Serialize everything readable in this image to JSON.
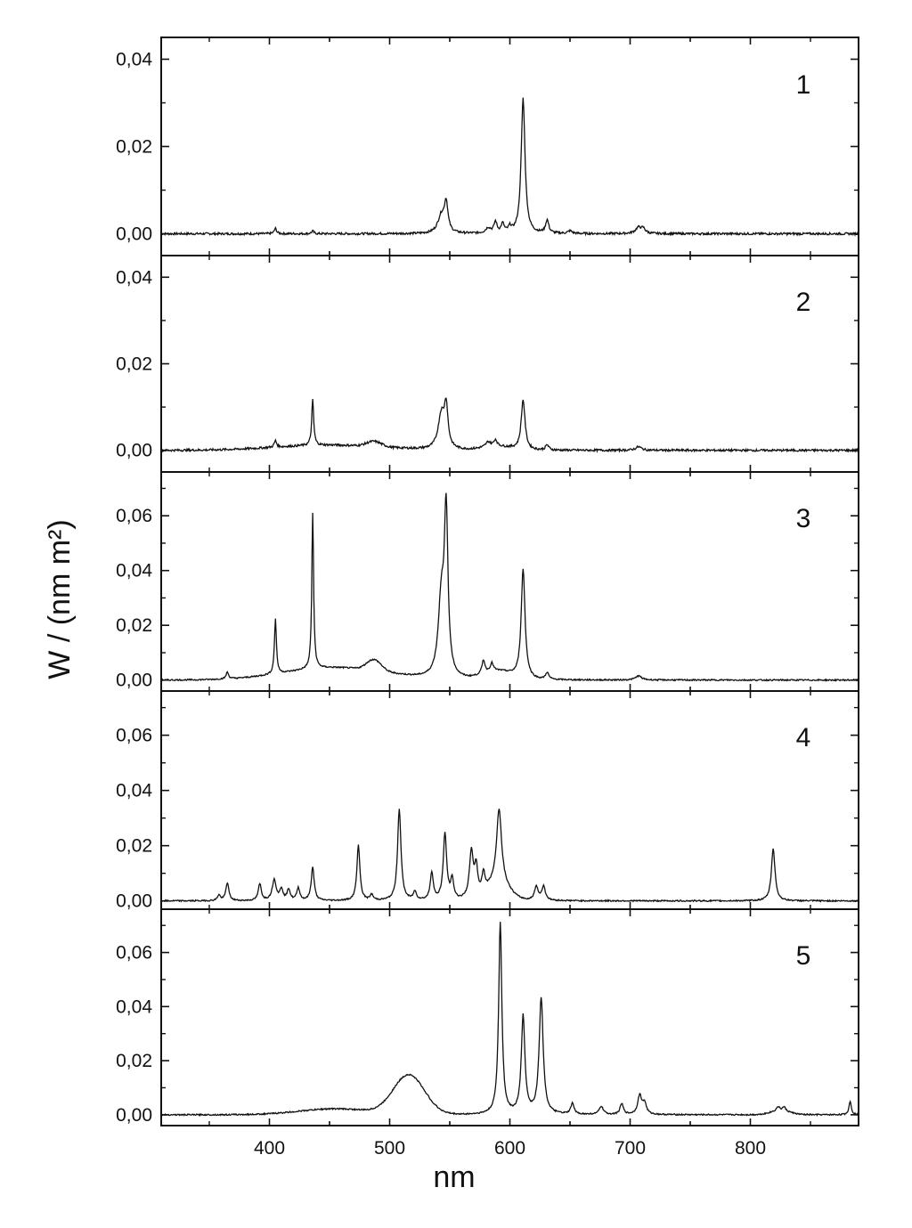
{
  "chart_data": {
    "type": "line",
    "xlabel": "nm",
    "ylabel": "W / (nm m²)",
    "xlim": [
      310,
      890
    ],
    "x_ticks": [
      "400",
      "500",
      "600",
      "700",
      "800"
    ],
    "grid": false,
    "panels": [
      {
        "label": "1",
        "ylim": [
          -0.005,
          0.045
        ],
        "y_ticks": [
          "0,00",
          "0,02",
          "0,04"
        ],
        "baseline": 0.0,
        "peaks": [
          {
            "x": 405,
            "h": 0.0012,
            "w": 1.2
          },
          {
            "x": 436,
            "h": 0.0006,
            "w": 1.2
          },
          {
            "x": 543,
            "h": 0.004,
            "w": 3.5
          },
          {
            "x": 547,
            "h": 0.0065,
            "w": 1.8
          },
          {
            "x": 582,
            "h": 0.0012,
            "w": 2.5
          },
          {
            "x": 588,
            "h": 0.0025,
            "w": 1.5
          },
          {
            "x": 594,
            "h": 0.002,
            "w": 1.5
          },
          {
            "x": 600,
            "h": 0.0012,
            "w": 1.5
          },
          {
            "x": 611,
            "h": 0.031,
            "w": 1.9
          },
          {
            "x": 631,
            "h": 0.003,
            "w": 1.6
          },
          {
            "x": 650,
            "h": 0.0006,
            "w": 2.0
          },
          {
            "x": 707,
            "h": 0.0014,
            "w": 3.0
          },
          {
            "x": 711,
            "h": 0.001,
            "w": 2.0
          }
        ]
      },
      {
        "label": "2",
        "ylim": [
          -0.005,
          0.045
        ],
        "y_ticks": [
          "0,00",
          "0,02",
          "0,04"
        ],
        "baseline": 0.0,
        "broad": [
          {
            "x": 450,
            "h": 0.0012,
            "w": 45
          },
          {
            "x": 487,
            "h": 0.0012,
            "w": 6
          },
          {
            "x": 590,
            "h": 0.0008,
            "w": 12
          }
        ],
        "peaks": [
          {
            "x": 405,
            "h": 0.0015,
            "w": 1.2
          },
          {
            "x": 436,
            "h": 0.0105,
            "w": 1.0
          },
          {
            "x": 543,
            "h": 0.008,
            "w": 3.2
          },
          {
            "x": 547,
            "h": 0.009,
            "w": 1.8
          },
          {
            "x": 582,
            "h": 0.0012,
            "w": 2.5
          },
          {
            "x": 588,
            "h": 0.0015,
            "w": 1.6
          },
          {
            "x": 611,
            "h": 0.0115,
            "w": 1.9
          },
          {
            "x": 631,
            "h": 0.0012,
            "w": 1.6
          },
          {
            "x": 707,
            "h": 0.0008,
            "w": 3.0
          }
        ]
      },
      {
        "label": "3",
        "ylim": [
          -0.004,
          0.076
        ],
        "y_ticks": [
          "0,00",
          "0,02",
          "0,04",
          "0,06"
        ],
        "baseline": 0.0,
        "broad": [
          {
            "x": 455,
            "h": 0.0045,
            "w": 42
          },
          {
            "x": 487,
            "h": 0.004,
            "w": 6
          },
          {
            "x": 590,
            "h": 0.003,
            "w": 12
          }
        ],
        "peaks": [
          {
            "x": 365,
            "h": 0.0025,
            "w": 1.2
          },
          {
            "x": 405,
            "h": 0.02,
            "w": 1.0
          },
          {
            "x": 436,
            "h": 0.057,
            "w": 0.9
          },
          {
            "x": 543,
            "h": 0.028,
            "w": 3.0
          },
          {
            "x": 547,
            "h": 0.058,
            "w": 1.8
          },
          {
            "x": 578,
            "h": 0.005,
            "w": 1.5
          },
          {
            "x": 585,
            "h": 0.003,
            "w": 1.5
          },
          {
            "x": 611,
            "h": 0.04,
            "w": 1.9
          },
          {
            "x": 631,
            "h": 0.0025,
            "w": 1.6
          },
          {
            "x": 707,
            "h": 0.0015,
            "w": 3.0
          }
        ]
      },
      {
        "label": "4",
        "ylim": [
          -0.003,
          0.076
        ],
        "y_ticks": [
          "0,00",
          "0,02",
          "0,04",
          "0,06"
        ],
        "baseline": 0.0,
        "broad": [
          {
            "x": 590,
            "h": 0.006,
            "w": 9
          }
        ],
        "peaks": [
          {
            "x": 358,
            "h": 0.002,
            "w": 1.5
          },
          {
            "x": 365,
            "h": 0.0065,
            "w": 1.5
          },
          {
            "x": 392,
            "h": 0.006,
            "w": 1.5
          },
          {
            "x": 404,
            "h": 0.0075,
            "w": 2.0
          },
          {
            "x": 410,
            "h": 0.004,
            "w": 1.5
          },
          {
            "x": 416,
            "h": 0.004,
            "w": 1.5
          },
          {
            "x": 424,
            "h": 0.0045,
            "w": 1.5
          },
          {
            "x": 436,
            "h": 0.012,
            "w": 1.5
          },
          {
            "x": 474,
            "h": 0.02,
            "w": 1.5
          },
          {
            "x": 485,
            "h": 0.002,
            "w": 1.5
          },
          {
            "x": 508,
            "h": 0.033,
            "w": 1.7
          },
          {
            "x": 521,
            "h": 0.003,
            "w": 1.5
          },
          {
            "x": 535,
            "h": 0.01,
            "w": 1.5
          },
          {
            "x": 546,
            "h": 0.024,
            "w": 1.7
          },
          {
            "x": 552,
            "h": 0.007,
            "w": 1.5
          },
          {
            "x": 568,
            "h": 0.017,
            "w": 2.0
          },
          {
            "x": 572,
            "h": 0.01,
            "w": 1.5
          },
          {
            "x": 578,
            "h": 0.007,
            "w": 1.5
          },
          {
            "x": 591,
            "h": 0.027,
            "w": 2.5
          },
          {
            "x": 622,
            "h": 0.005,
            "w": 1.8
          },
          {
            "x": 628,
            "h": 0.005,
            "w": 1.8
          },
          {
            "x": 819,
            "h": 0.019,
            "w": 1.8
          }
        ]
      },
      {
        "label": "5",
        "ylim": [
          -0.004,
          0.076
        ],
        "y_ticks": [
          "0,00",
          "0,02",
          "0,04",
          "0,06"
        ],
        "baseline": 0.0,
        "broad": [
          {
            "x": 455,
            "h": 0.0022,
            "w": 30
          },
          {
            "x": 516,
            "h": 0.0145,
            "w": 13
          },
          {
            "x": 825,
            "h": 0.0015,
            "w": 8
          }
        ],
        "peaks": [
          {
            "x": 592,
            "h": 0.071,
            "w": 1.6
          },
          {
            "x": 611,
            "h": 0.036,
            "w": 1.8
          },
          {
            "x": 626,
            "h": 0.043,
            "w": 2.0
          },
          {
            "x": 652,
            "h": 0.004,
            "w": 1.6
          },
          {
            "x": 676,
            "h": 0.003,
            "w": 2.0
          },
          {
            "x": 693,
            "h": 0.004,
            "w": 1.6
          },
          {
            "x": 708,
            "h": 0.007,
            "w": 2.0
          },
          {
            "x": 712,
            "h": 0.004,
            "w": 1.8
          },
          {
            "x": 823,
            "h": 0.0015,
            "w": 1.5
          },
          {
            "x": 828,
            "h": 0.0015,
            "w": 1.5
          },
          {
            "x": 883,
            "h": 0.005,
            "w": 1.2
          }
        ]
      }
    ]
  }
}
